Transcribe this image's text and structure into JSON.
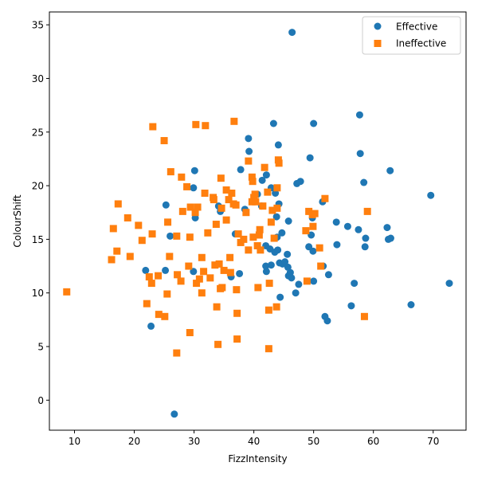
{
  "chart_data": {
    "type": "scatter",
    "title": "",
    "xlabel": "FizzIntensity",
    "ylabel": "ColourShift",
    "xlim": [
      5.8,
      75.5
    ],
    "ylim": [
      -2.8,
      36.2
    ],
    "xticks": [
      10,
      20,
      30,
      40,
      50,
      60,
      70
    ],
    "yticks": [
      0,
      5,
      10,
      15,
      20,
      25,
      30,
      35
    ],
    "grid": false,
    "legend_position": "top-right",
    "series": [
      {
        "name": "Effective",
        "marker": "circle",
        "color": "#1f77b4",
        "points": [
          [
            26.7,
            -1.3
          ],
          [
            22.8,
            6.9
          ],
          [
            21.9,
            12.1
          ],
          [
            25.2,
            12.1
          ],
          [
            25.3,
            18.2
          ],
          [
            26.0,
            15.3
          ],
          [
            29.9,
            12.0
          ],
          [
            29.9,
            19.8
          ],
          [
            30.1,
            21.4
          ],
          [
            30.2,
            17.0
          ],
          [
            34.1,
            18.1
          ],
          [
            34.4,
            17.6
          ],
          [
            36.2,
            11.5
          ],
          [
            36.9,
            15.5
          ],
          [
            37.6,
            11.8
          ],
          [
            37.8,
            21.5
          ],
          [
            38.5,
            17.8
          ],
          [
            39.1,
            24.4
          ],
          [
            39.2,
            23.2
          ],
          [
            40.6,
            19.2
          ],
          [
            41.3,
            18.1
          ],
          [
            41.4,
            20.5
          ],
          [
            42.0,
            14.4
          ],
          [
            42.0,
            12.5
          ],
          [
            42.1,
            21.0
          ],
          [
            42.1,
            12.0
          ],
          [
            42.7,
            14.1
          ],
          [
            42.9,
            12.6
          ],
          [
            42.9,
            19.8
          ],
          [
            43.3,
            25.8
          ],
          [
            43.5,
            13.8
          ],
          [
            43.6,
            19.3
          ],
          [
            43.8,
            17.1
          ],
          [
            43.9,
            15.2
          ],
          [
            44.0,
            14.0
          ],
          [
            44.1,
            23.8
          ],
          [
            44.2,
            18.3
          ],
          [
            44.3,
            12.8
          ],
          [
            44.4,
            9.6
          ],
          [
            44.7,
            15.6
          ],
          [
            44.8,
            12.7
          ],
          [
            45.2,
            12.9
          ],
          [
            45.6,
            13.6
          ],
          [
            45.7,
            12.4
          ],
          [
            45.8,
            16.7
          ],
          [
            45.8,
            11.6
          ],
          [
            46.1,
            11.9
          ],
          [
            46.3,
            11.4
          ],
          [
            46.4,
            34.3
          ],
          [
            47.0,
            10.0
          ],
          [
            47.2,
            20.2
          ],
          [
            47.5,
            10.8
          ],
          [
            47.8,
            20.4
          ],
          [
            49.2,
            14.3
          ],
          [
            49.4,
            22.6
          ],
          [
            49.6,
            15.4
          ],
          [
            49.8,
            17.0
          ],
          [
            49.9,
            13.9
          ],
          [
            50.0,
            25.8
          ],
          [
            50.0,
            11.1
          ],
          [
            51.5,
            18.5
          ],
          [
            51.6,
            12.5
          ],
          [
            51.9,
            7.8
          ],
          [
            52.3,
            7.4
          ],
          [
            52.5,
            11.7
          ],
          [
            53.8,
            16.6
          ],
          [
            53.9,
            14.5
          ],
          [
            55.7,
            16.2
          ],
          [
            56.3,
            8.8
          ],
          [
            56.8,
            10.9
          ],
          [
            57.5,
            15.9
          ],
          [
            57.7,
            26.6
          ],
          [
            57.8,
            23.0
          ],
          [
            58.4,
            20.3
          ],
          [
            58.6,
            14.3
          ],
          [
            58.7,
            15.1
          ],
          [
            62.3,
            16.1
          ],
          [
            62.5,
            15.0
          ],
          [
            62.8,
            21.4
          ],
          [
            62.9,
            15.1
          ],
          [
            66.3,
            8.9
          ],
          [
            69.6,
            19.1
          ],
          [
            72.7,
            10.9
          ]
        ]
      },
      {
        "name": "Ineffective",
        "marker": "square",
        "color": "#ff7f0e",
        "points": [
          [
            8.7,
            10.1
          ],
          [
            16.2,
            13.1
          ],
          [
            16.5,
            16.0
          ],
          [
            17.1,
            13.9
          ],
          [
            17.3,
            18.3
          ],
          [
            18.9,
            17.0
          ],
          [
            19.3,
            13.4
          ],
          [
            20.7,
            16.3
          ],
          [
            21.3,
            14.9
          ],
          [
            22.1,
            9.0
          ],
          [
            22.5,
            11.5
          ],
          [
            22.9,
            10.9
          ],
          [
            23.0,
            15.5
          ],
          [
            23.1,
            25.5
          ],
          [
            24.0,
            11.6
          ],
          [
            24.1,
            8.0
          ],
          [
            25.0,
            24.2
          ],
          [
            25.1,
            7.8
          ],
          [
            25.5,
            9.9
          ],
          [
            25.6,
            16.6
          ],
          [
            25.9,
            13.4
          ],
          [
            26.1,
            21.3
          ],
          [
            27.1,
            4.4
          ],
          [
            27.1,
            15.3
          ],
          [
            27.2,
            11.7
          ],
          [
            27.8,
            11.1
          ],
          [
            27.9,
            20.8
          ],
          [
            28.1,
            17.6
          ],
          [
            28.8,
            19.9
          ],
          [
            29.1,
            12.5
          ],
          [
            29.3,
            6.3
          ],
          [
            29.3,
            15.2
          ],
          [
            29.4,
            18.0
          ],
          [
            30.2,
            17.5
          ],
          [
            30.3,
            25.7
          ],
          [
            30.4,
            10.9
          ],
          [
            30.6,
            18.0
          ],
          [
            30.9,
            11.3
          ],
          [
            31.3,
            13.3
          ],
          [
            31.3,
            10.0
          ],
          [
            31.6,
            12.0
          ],
          [
            31.8,
            19.3
          ],
          [
            31.9,
            25.6
          ],
          [
            32.3,
            15.6
          ],
          [
            32.7,
            11.4
          ],
          [
            33.2,
            18.9
          ],
          [
            33.3,
            18.7
          ],
          [
            33.5,
            12.6
          ],
          [
            33.7,
            16.4
          ],
          [
            33.8,
            8.7
          ],
          [
            34.0,
            5.2
          ],
          [
            34.2,
            12.7
          ],
          [
            34.4,
            10.4
          ],
          [
            34.5,
            20.7
          ],
          [
            34.6,
            17.9
          ],
          [
            34.7,
            10.5
          ],
          [
            35.0,
            12.1
          ],
          [
            35.4,
            16.8
          ],
          [
            35.4,
            19.6
          ],
          [
            35.8,
            18.7
          ],
          [
            36.0,
            13.3
          ],
          [
            36.1,
            11.9
          ],
          [
            36.3,
            19.3
          ],
          [
            36.6,
            18.3
          ],
          [
            36.7,
            26.0
          ],
          [
            37.0,
            18.2
          ],
          [
            37.1,
            10.3
          ],
          [
            37.2,
            8.1
          ],
          [
            37.2,
            5.7
          ],
          [
            37.4,
            15.5
          ],
          [
            37.8,
            14.7
          ],
          [
            38.3,
            15.0
          ],
          [
            38.7,
            17.5
          ],
          [
            39.1,
            14.0
          ],
          [
            39.1,
            22.3
          ],
          [
            39.7,
            20.8
          ],
          [
            39.7,
            18.5
          ],
          [
            39.8,
            20.4
          ],
          [
            39.9,
            15.2
          ],
          [
            40.0,
            18.9
          ],
          [
            40.2,
            19.2
          ],
          [
            40.3,
            18.5
          ],
          [
            40.6,
            14.4
          ],
          [
            40.7,
            10.5
          ],
          [
            40.9,
            15.4
          ],
          [
            41.0,
            15.9
          ],
          [
            41.1,
            14.0
          ],
          [
            41.5,
            18.1
          ],
          [
            41.8,
            21.7
          ],
          [
            42.3,
            19.4
          ],
          [
            42.5,
            4.8
          ],
          [
            42.5,
            8.4
          ],
          [
            42.6,
            10.9
          ],
          [
            42.9,
            16.6
          ],
          [
            43.1,
            17.7
          ],
          [
            43.4,
            15.1
          ],
          [
            43.8,
            8.7
          ],
          [
            43.9,
            17.9
          ],
          [
            44.1,
            22.4
          ],
          [
            44.2,
            22.1
          ],
          [
            48.7,
            15.8
          ],
          [
            48.9,
            11.1
          ],
          [
            49.2,
            17.6
          ],
          [
            49.8,
            17.3
          ],
          [
            49.9,
            16.2
          ],
          [
            50.2,
            17.4
          ],
          [
            51.0,
            14.2
          ],
          [
            51.2,
            12.5
          ],
          [
            51.9,
            18.8
          ],
          [
            58.5,
            7.8
          ],
          [
            59.0,
            17.6
          ],
          [
            43.9,
            19.8
          ]
        ]
      }
    ]
  }
}
